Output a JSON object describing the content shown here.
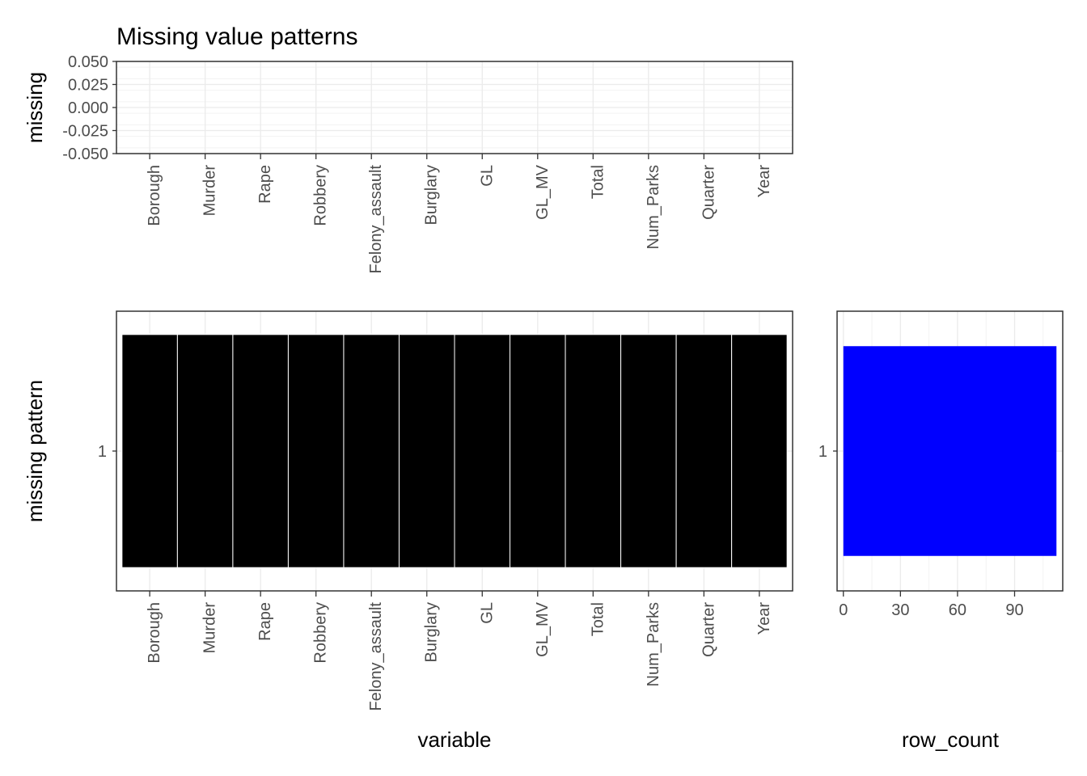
{
  "chart_data": [
    {
      "panel": "top",
      "type": "bar",
      "title": "Missing value patterns",
      "ylabel": "missing",
      "xlabel": "",
      "categories": [
        "Borough",
        "Murder",
        "Rape",
        "Robbery",
        "Felony_assault",
        "Burglary",
        "GL",
        "GL_MV",
        "Total",
        "Num_Parks",
        "Quarter",
        "Year"
      ],
      "values": [
        0,
        0,
        0,
        0,
        0,
        0,
        0,
        0,
        0,
        0,
        0,
        0
      ],
      "ylim": [
        -0.05,
        0.05
      ],
      "yticks": [
        "0.050",
        "0.025",
        "0.000",
        "-0.025",
        "-0.050"
      ],
      "grid": true
    },
    {
      "panel": "main",
      "type": "heatmap",
      "xlabel": "variable",
      "ylabel": "missing pattern",
      "x": [
        "Borough",
        "Murder",
        "Rape",
        "Robbery",
        "Felony_assault",
        "Burglary",
        "GL",
        "GL_MV",
        "Total",
        "Num_Parks",
        "Quarter",
        "Year"
      ],
      "y": [
        "1"
      ],
      "missing": [
        [
          false,
          false,
          false,
          false,
          false,
          false,
          false,
          false,
          false,
          false,
          false,
          false
        ]
      ],
      "colors": {
        "complete": "#000000",
        "tile_border": "#ffffff"
      },
      "grid": true
    },
    {
      "panel": "right",
      "type": "bar",
      "orientation": "horizontal",
      "xlabel": "row_count",
      "ylabel": "",
      "categories": [
        "1"
      ],
      "values": [
        112
      ],
      "xlim": [
        -3.3,
        115.3
      ],
      "xticks": [
        0,
        30,
        60,
        90
      ],
      "color": "#0000ff",
      "grid": true
    }
  ]
}
